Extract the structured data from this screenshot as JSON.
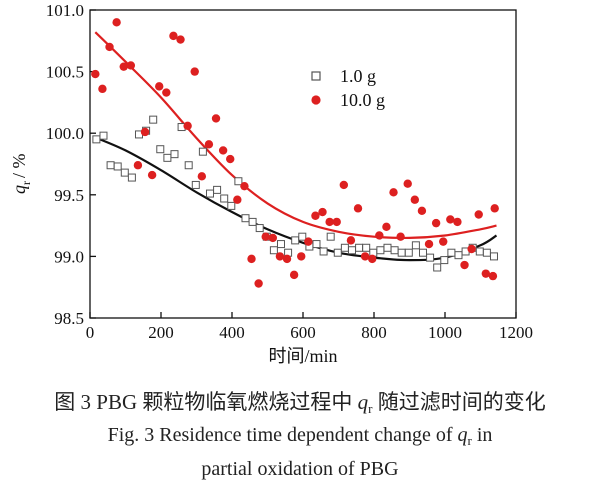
{
  "chart_data": {
    "type": "scatter",
    "xlabel": "时间/min",
    "ylabel": {
      "symbol": "q",
      "subscript": "r",
      "unit": "/ %"
    },
    "xlim": [
      0,
      1200
    ],
    "ylim": [
      98.5,
      101.0
    ],
    "xticks": [
      "0",
      "200",
      "400",
      "600",
      "800",
      "1000",
      "1200"
    ],
    "yticks": [
      "98.5",
      "99.0",
      "99.5",
      "100.0",
      "100.5",
      "101.0"
    ],
    "legend_position": "top-center",
    "grid": false,
    "series": [
      {
        "name": "1.0 g",
        "marker": "open-square",
        "color": "#555555",
        "points": [
          [
            18,
            99.95
          ],
          [
            38,
            99.98
          ],
          [
            58,
            99.74
          ],
          [
            78,
            99.73
          ],
          [
            98,
            99.68
          ],
          [
            118,
            99.64
          ],
          [
            138,
            99.99
          ],
          [
            158,
            100.02
          ],
          [
            178,
            100.11
          ],
          [
            198,
            99.87
          ],
          [
            218,
            99.8
          ],
          [
            238,
            99.83
          ],
          [
            258,
            100.05
          ],
          [
            278,
            99.74
          ],
          [
            298,
            99.58
          ],
          [
            318,
            99.85
          ],
          [
            338,
            99.51
          ],
          [
            358,
            99.54
          ],
          [
            378,
            99.47
          ],
          [
            398,
            99.41
          ],
          [
            418,
            99.61
          ],
          [
            438,
            99.31
          ],
          [
            458,
            99.28
          ],
          [
            478,
            99.23
          ],
          [
            498,
            99.16
          ],
          [
            518,
            99.05
          ],
          [
            538,
            99.1
          ],
          [
            558,
            99.03
          ],
          [
            578,
            99.13
          ],
          [
            598,
            99.16
          ],
          [
            618,
            99.08
          ],
          [
            638,
            99.1
          ],
          [
            658,
            99.04
          ],
          [
            678,
            99.16
          ],
          [
            698,
            99.03
          ],
          [
            718,
            99.07
          ],
          [
            738,
            99.05
          ],
          [
            758,
            99.07
          ],
          [
            778,
            99.07
          ],
          [
            798,
            99.03
          ],
          [
            818,
            99.05
          ],
          [
            838,
            99.07
          ],
          [
            858,
            99.05
          ],
          [
            878,
            99.03
          ],
          [
            898,
            99.03
          ],
          [
            918,
            99.09
          ],
          [
            938,
            99.03
          ],
          [
            958,
            98.99
          ],
          [
            978,
            98.91
          ],
          [
            998,
            98.97
          ],
          [
            1018,
            99.03
          ],
          [
            1038,
            99.01
          ],
          [
            1058,
            99.04
          ],
          [
            1078,
            99.07
          ],
          [
            1098,
            99.04
          ],
          [
            1118,
            99.03
          ],
          [
            1138,
            99.0
          ]
        ],
        "fit": [
          [
            20,
            99.96
          ],
          [
            100,
            99.86
          ],
          [
            200,
            99.7
          ],
          [
            300,
            99.52
          ],
          [
            400,
            99.36
          ],
          [
            500,
            99.22
          ],
          [
            600,
            99.11
          ],
          [
            700,
            99.03
          ],
          [
            800,
            98.99
          ],
          [
            900,
            98.97
          ],
          [
            1000,
            98.99
          ],
          [
            1100,
            99.09
          ],
          [
            1145,
            99.17
          ]
        ],
        "fit_color": "#111111"
      },
      {
        "name": "10.0 g",
        "marker": "filled-circle",
        "color": "#dd2020",
        "points": [
          [
            15,
            100.48
          ],
          [
            35,
            100.36
          ],
          [
            55,
            100.7
          ],
          [
            75,
            100.9
          ],
          [
            95,
            100.54
          ],
          [
            115,
            100.55
          ],
          [
            135,
            99.74
          ],
          [
            155,
            100.01
          ],
          [
            175,
            99.66
          ],
          [
            195,
            100.38
          ],
          [
            215,
            100.33
          ],
          [
            235,
            100.79
          ],
          [
            255,
            100.76
          ],
          [
            275,
            100.06
          ],
          [
            295,
            100.5
          ],
          [
            315,
            99.65
          ],
          [
            335,
            99.91
          ],
          [
            355,
            100.12
          ],
          [
            375,
            99.86
          ],
          [
            395,
            99.79
          ],
          [
            415,
            99.46
          ],
          [
            435,
            99.57
          ],
          [
            455,
            98.98
          ],
          [
            475,
            98.78
          ],
          [
            495,
            99.16
          ],
          [
            515,
            99.15
          ],
          [
            535,
            99.0
          ],
          [
            555,
            98.98
          ],
          [
            575,
            98.85
          ],
          [
            595,
            99.0
          ],
          [
            615,
            99.12
          ],
          [
            635,
            99.33
          ],
          [
            655,
            99.36
          ],
          [
            675,
            99.28
          ],
          [
            695,
            99.28
          ],
          [
            715,
            99.58
          ],
          [
            735,
            99.13
          ],
          [
            755,
            99.39
          ],
          [
            775,
            99.0
          ],
          [
            795,
            98.98
          ],
          [
            815,
            99.17
          ],
          [
            835,
            99.24
          ],
          [
            855,
            99.52
          ],
          [
            875,
            99.16
          ],
          [
            895,
            99.59
          ],
          [
            915,
            99.46
          ],
          [
            935,
            99.37
          ],
          [
            955,
            99.1
          ],
          [
            975,
            99.27
          ],
          [
            995,
            99.12
          ],
          [
            1015,
            99.3
          ],
          [
            1035,
            99.28
          ],
          [
            1055,
            98.93
          ],
          [
            1075,
            99.06
          ],
          [
            1095,
            99.34
          ],
          [
            1115,
            98.86
          ],
          [
            1135,
            98.84
          ],
          [
            1140,
            99.39
          ]
        ],
        "fit": [
          [
            15,
            100.82
          ],
          [
            100,
            100.58
          ],
          [
            200,
            100.29
          ],
          [
            300,
            99.96
          ],
          [
            400,
            99.66
          ],
          [
            500,
            99.43
          ],
          [
            600,
            99.28
          ],
          [
            700,
            99.2
          ],
          [
            800,
            99.16
          ],
          [
            900,
            99.15
          ],
          [
            1000,
            99.17
          ],
          [
            1100,
            99.22
          ],
          [
            1145,
            99.25
          ]
        ],
        "fit_color": "#dd2020"
      }
    ]
  },
  "caption": {
    "cn_prefix": "图 3    PBG 颗粒物临氧燃烧过程中 ",
    "cn_symbol": "q",
    "cn_subscript": "r",
    "cn_suffix": " 随过滤时间的变化",
    "en_line1_prefix": "Fig. 3    Residence time dependent change of  ",
    "en_symbol": "q",
    "en_subscript": "r",
    "en_line1_suffix": "  in",
    "en_line2": "partial oxidation of PBG"
  }
}
